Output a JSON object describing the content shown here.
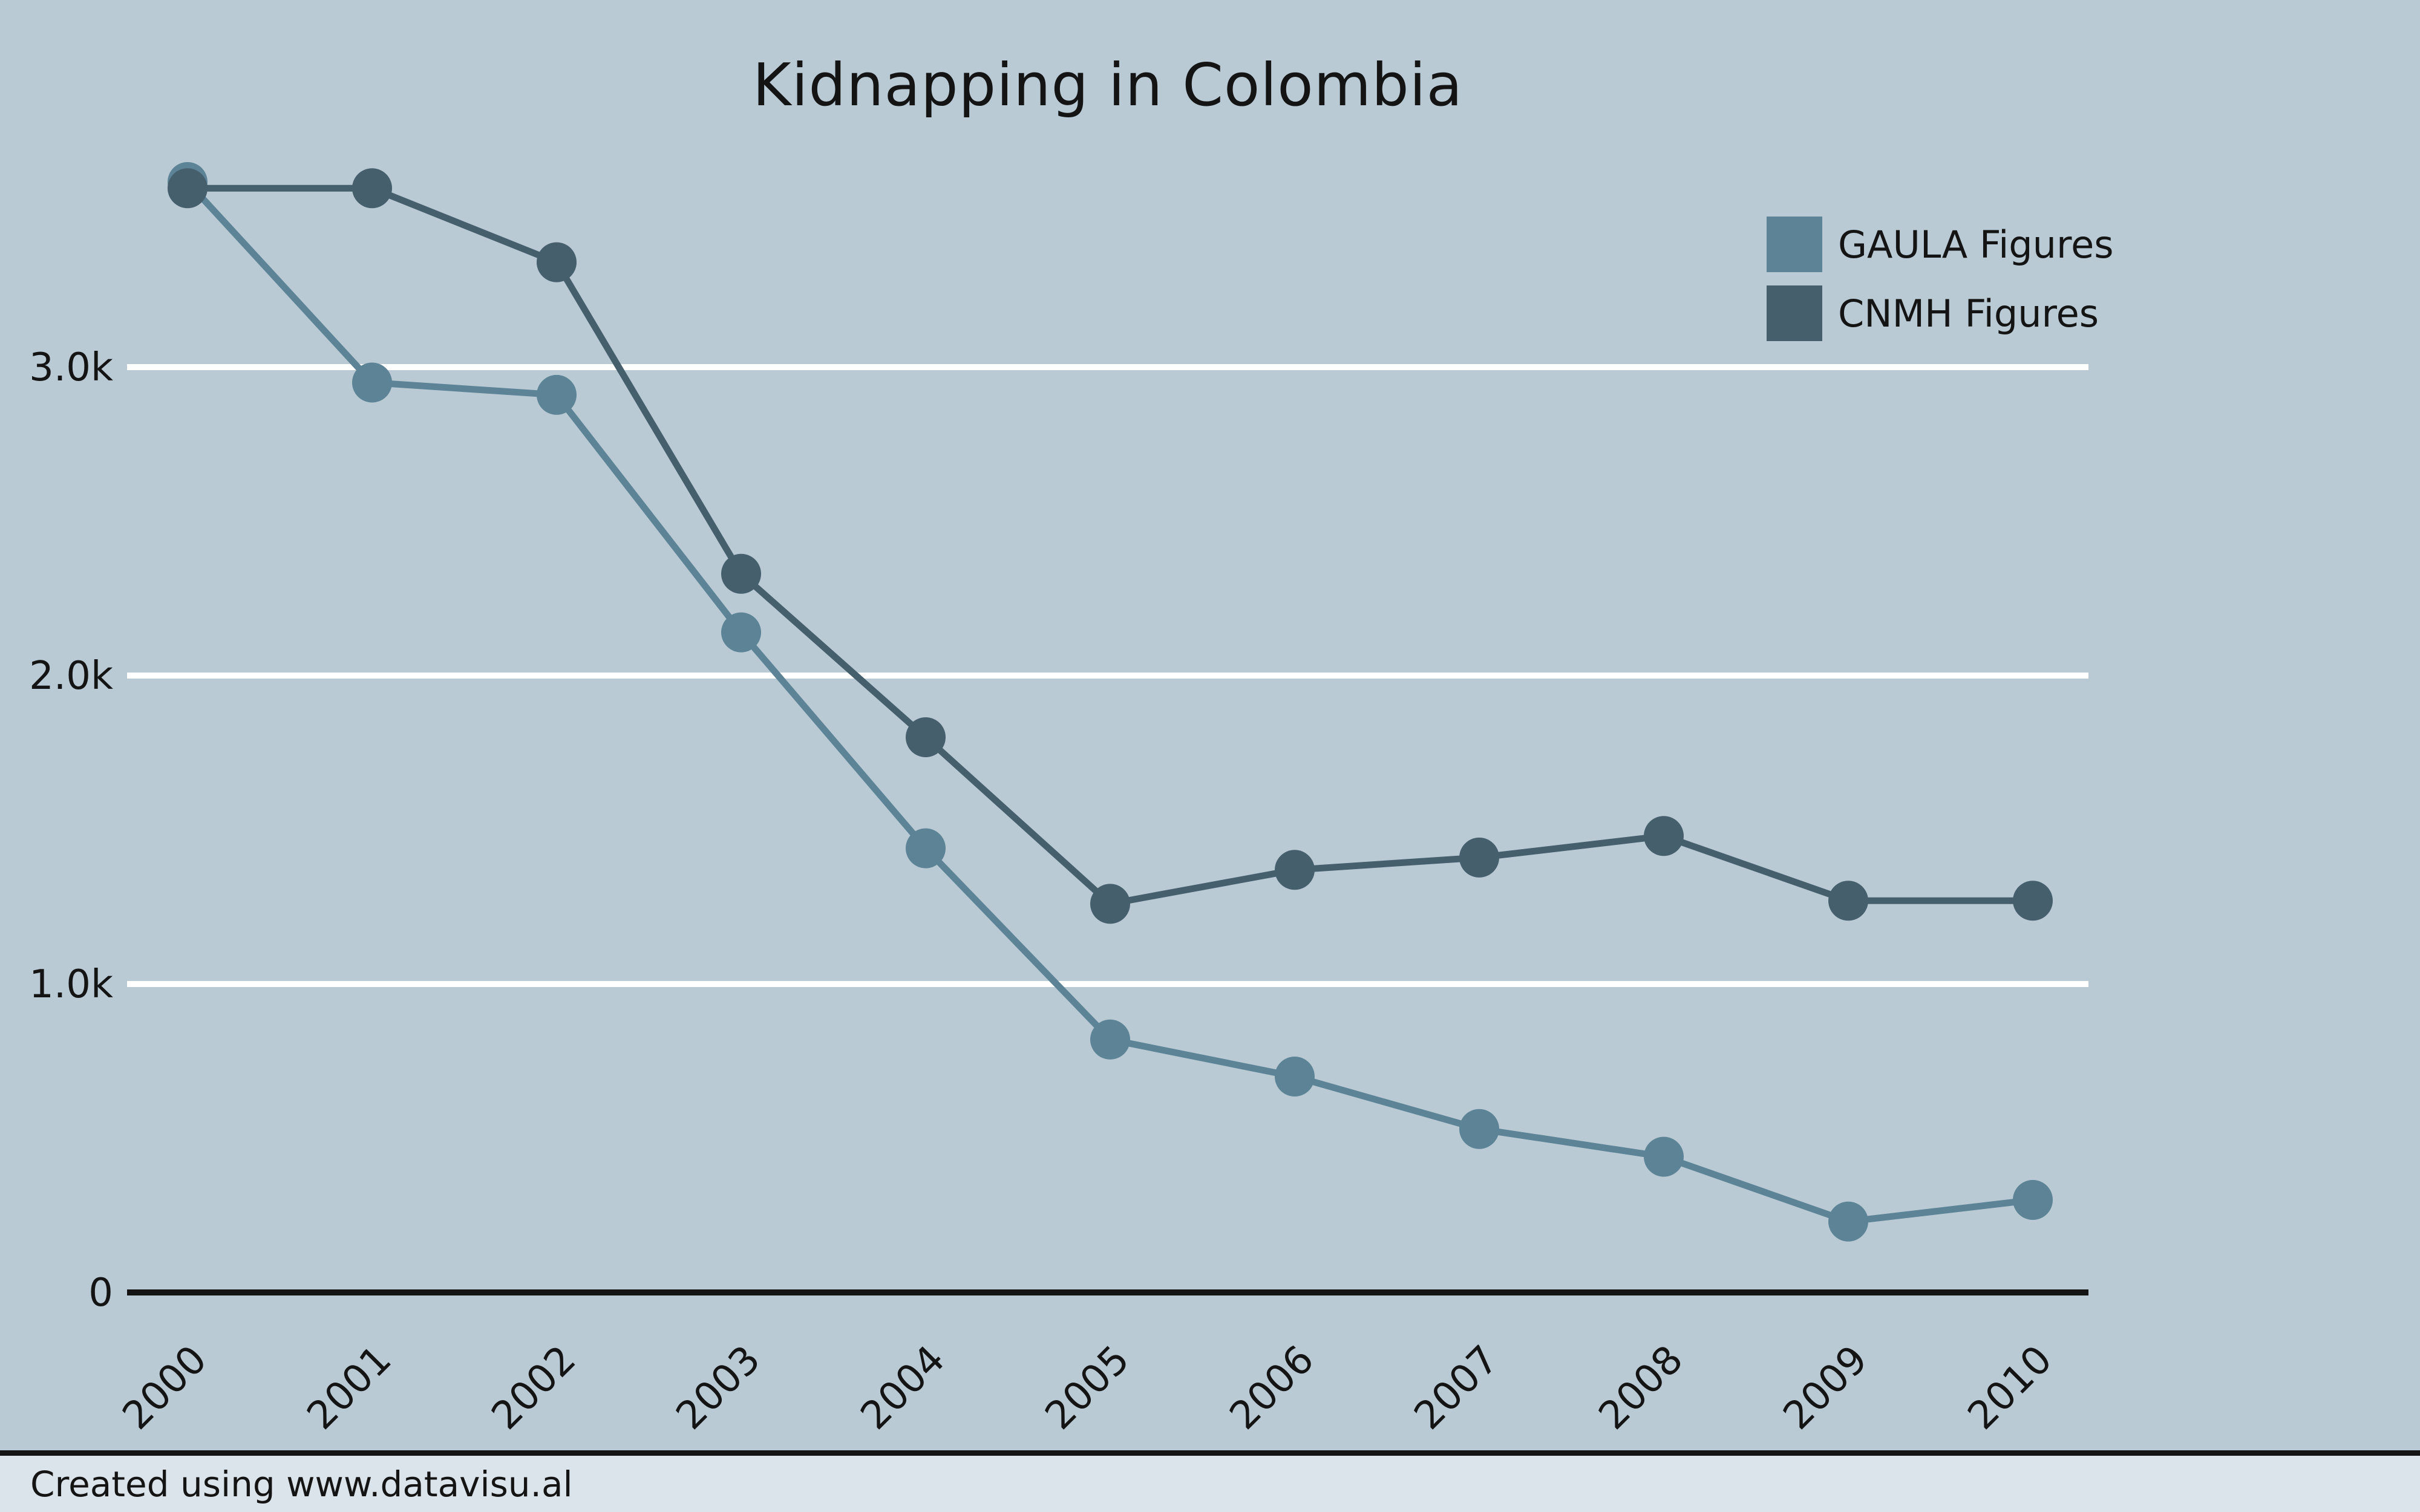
{
  "title": "Kidnapping in Colombia",
  "palette": {
    "background": "#b9cad5",
    "axis": "#141414",
    "gridline": "#ffffff",
    "gaula": "#5c8396",
    "cnmh": "#465f6d",
    "footer_background": "#dce4eb"
  },
  "legend": {
    "items": [
      {
        "label": "GAULA Figures",
        "color": "#5c8396"
      },
      {
        "label": "CNMH Figures",
        "color": "#465f6d"
      }
    ]
  },
  "footer": {
    "credit": "Created using www.datavisu.al"
  },
  "chart_data": {
    "type": "line",
    "title": "Kidnapping in Colombia",
    "xlabel": "",
    "ylabel": "",
    "categories": [
      "2000",
      "2001",
      "2002",
      "2003",
      "2004",
      "2005",
      "2006",
      "2007",
      "2008",
      "2009",
      "2010"
    ],
    "series": [
      {
        "name": "GAULA Figures",
        "color": "#5c8396",
        "values": [
          3600,
          2950,
          2910,
          2140,
          1440,
          820,
          700,
          530,
          440,
          230,
          300
        ]
      },
      {
        "name": "CNMH Figures",
        "color": "#465f6d",
        "values": [
          3580,
          3580,
          3340,
          2330,
          1800,
          1260,
          1370,
          1410,
          1480,
          1270,
          1270
        ]
      }
    ],
    "ylim": [
      0,
      3750
    ],
    "y_ticks": [
      {
        "value": 0,
        "label": "0"
      },
      {
        "value": 1000,
        "label": "1.0k"
      },
      {
        "value": 2000,
        "label": "2.0k"
      },
      {
        "value": 3000,
        "label": "3.0k"
      }
    ],
    "grid": "horizontal-white-lines",
    "legend_position": "top-right",
    "x_tick_rotation": -45,
    "marker": "circle"
  }
}
